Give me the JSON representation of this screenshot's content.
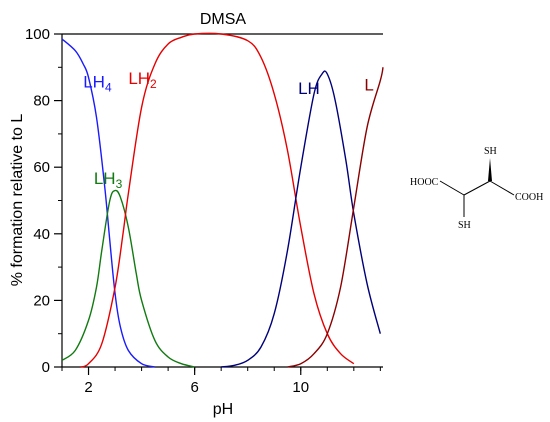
{
  "chart_data": {
    "type": "line",
    "title": "DMSA",
    "xlabel": "pH",
    "ylabel": "% formation relative to L",
    "xlim": [
      1,
      13.1
    ],
    "ylim": [
      0,
      100
    ],
    "xticks": [
      "2",
      "6",
      "10"
    ],
    "yticks": [
      "0",
      "20",
      "40",
      "60",
      "80",
      "100"
    ],
    "grid": false,
    "series": [
      {
        "name": "LH",
        "sub": "4",
        "color": "#1a1aff",
        "x": [
          1.0,
          1.5,
          1.8,
          2.0,
          2.3,
          2.6,
          2.8,
          3.0,
          3.2,
          3.5,
          4.0,
          4.5
        ],
        "y": [
          98.5,
          95,
          91,
          87,
          75,
          55,
          38,
          22,
          12,
          5,
          1,
          0
        ]
      },
      {
        "name": "LH",
        "sub": "3",
        "color": "#117a11",
        "x": [
          1.0,
          1.5,
          2.0,
          2.3,
          2.5,
          2.8,
          3.0,
          3.2,
          3.5,
          3.8,
          4.0,
          4.5,
          5.0,
          5.5,
          6.0
        ],
        "y": [
          2,
          5,
          14,
          24,
          35,
          50,
          53,
          51,
          42,
          28,
          20,
          8,
          3,
          1,
          0
        ]
      },
      {
        "name": "LH",
        "sub": "2",
        "color": "#e60000",
        "x": [
          1.7,
          2.0,
          2.5,
          3.0,
          3.3,
          3.5,
          4.0,
          4.5,
          5.0,
          5.5,
          6.0,
          7.0,
          8.0,
          8.5,
          9.0,
          9.5,
          10.0,
          10.5,
          11.0,
          11.5,
          12.0
        ],
        "y": [
          0,
          1,
          7,
          24,
          40,
          52,
          78,
          91,
          97,
          99,
          100,
          100,
          98,
          93,
          82,
          65,
          42,
          22,
          10,
          4,
          1
        ]
      },
      {
        "name": "LH",
        "sub": "",
        "color": "#00007a",
        "x": [
          7.0,
          7.5,
          8.0,
          8.5,
          9.0,
          9.5,
          10.0,
          10.5,
          10.8,
          11.0,
          11.3,
          11.7,
          12.0,
          12.5,
          13.0
        ],
        "y": [
          0,
          0.5,
          2,
          6,
          16,
          35,
          60,
          82,
          88,
          88,
          80,
          62,
          46,
          25,
          10
        ]
      },
      {
        "name": "L",
        "sub": "",
        "color": "#8b0000",
        "x": [
          9.5,
          10.0,
          10.5,
          11.0,
          11.5,
          12.0,
          12.5,
          13.0,
          13.1
        ],
        "y": [
          0,
          1,
          4,
          10,
          24,
          48,
          72,
          86,
          90
        ]
      }
    ]
  },
  "structure": {
    "left_group": "HOOC",
    "right_group": "COOH",
    "top_group": "SH",
    "bottom_group": "SH"
  }
}
